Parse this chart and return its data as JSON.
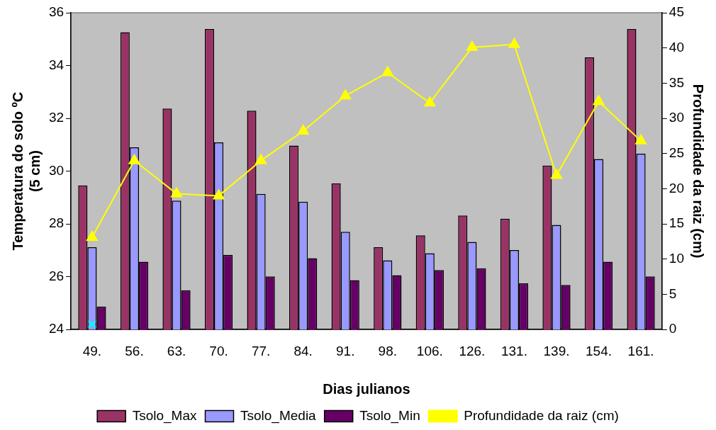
{
  "chart_data": {
    "type": "bar",
    "xlabel": "Dias julianos",
    "ylabel": "Temperatura do solo ºC\n(5 cm)",
    "y2label": "Profundidade da raiz (cm)",
    "categories": [
      "49.",
      "56.",
      "63.",
      "70.",
      "77.",
      "84.",
      "91.",
      "98.",
      "106.",
      "126.",
      "131.",
      "139.",
      "154.",
      "161."
    ],
    "series": [
      {
        "name": "Tsolo_Max",
        "color": "#993366",
        "values": [
          29.46,
          35.26,
          32.37,
          35.38,
          32.29,
          30.97,
          29.53,
          27.12,
          27.57,
          28.32,
          28.2,
          30.21,
          34.31,
          35.38
        ]
      },
      {
        "name": "Tsolo_Media",
        "color": "#9999ff",
        "values": [
          27.12,
          30.9,
          28.88,
          31.09,
          29.14,
          28.84,
          27.7,
          26.62,
          26.89,
          27.32,
          27.01,
          27.96,
          30.46,
          30.66
        ]
      },
      {
        "name": "Tsolo_Min",
        "color": "#660066",
        "values": [
          24.87,
          26.57,
          25.49,
          26.83,
          26.01,
          26.7,
          25.87,
          26.06,
          26.25,
          26.32,
          25.75,
          25.69,
          26.57,
          26.01
        ]
      },
      {
        "name": "Profundidade da raiz (cm)",
        "type": "line",
        "axis": "y2",
        "marker": "triangle",
        "color": "#ffff00",
        "values": [
          13.1,
          24.0,
          19.3,
          19.0,
          24.0,
          28.2,
          33.2,
          36.5,
          32.2,
          40.1,
          40.5,
          21.9,
          32.4,
          26.8
        ]
      },
      {
        "type": "scatter",
        "marker": "cross",
        "color": "#00ffff",
        "values": [
          24.2,
          null,
          null,
          null,
          null,
          null,
          null,
          null,
          null,
          null,
          null,
          null,
          null,
          null
        ]
      }
    ],
    "ylim": [
      24,
      36
    ],
    "yticks": [
      24,
      26,
      28,
      30,
      32,
      34,
      36
    ],
    "y2lim": [
      0,
      45
    ],
    "y2ticks": [
      0,
      5,
      10,
      15,
      20,
      25,
      30,
      35,
      40,
      45
    ],
    "grid": false,
    "legend": "bottom"
  }
}
